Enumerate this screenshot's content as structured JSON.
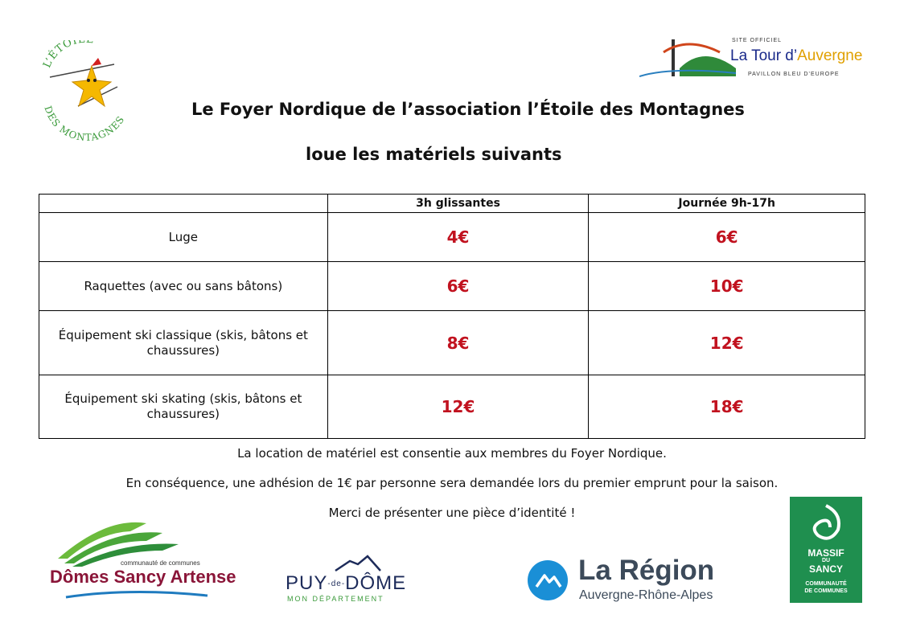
{
  "header": {
    "title_line1": "Le Foyer Nordique de l’association l’Étoile des Montagnes",
    "title_line2": "loue les matériels suivants"
  },
  "logos": {
    "etoile": {
      "arc_top": "L’ÉTOILE",
      "arc_bottom": "DES MONTAGNES"
    },
    "tour": {
      "small_top": "SITE OFFICIEL",
      "name_a": "La Tour d’",
      "name_b": "Auvergne",
      "small_bottom": "PAVILLON BLEU D’EUROPE"
    },
    "domes": {
      "small": "communauté de communes",
      "name": "Dômes Sancy Artense"
    },
    "puy": {
      "name_a": "PUY",
      "name_de": "-de-",
      "name_b": "DÔME",
      "sub": "MON DÉPARTEMENT"
    },
    "region": {
      "name": "La Région",
      "sub": "Auvergne-Rhône-Alpes"
    },
    "sancy": {
      "line1": "MASSIF",
      "line2": "DU",
      "line3": "SANCY",
      "line4": "COMMUNAUTÉ",
      "line5": "DE COMMUNES"
    }
  },
  "table": {
    "headers": [
      "",
      "3h glissantes",
      "Journée 9h-17h"
    ],
    "rows": [
      {
        "item": "Luge",
        "price_3h": "4€",
        "price_day": "6€"
      },
      {
        "item": "Raquettes (avec ou sans bâtons)",
        "price_3h": "6€",
        "price_day": "10€"
      },
      {
        "item": "Équipement ski classique (skis, bâtons et chaussures)",
        "price_3h": "8€",
        "price_day": "12€"
      },
      {
        "item": "Équipement ski skating (skis, bâtons et chaussures)",
        "price_3h": "12€",
        "price_day": "18€"
      }
    ]
  },
  "notes": [
    "La location de matériel est consentie aux membres du Foyer Nordique.",
    "En conséquence, une adhésion de 1€ par personne sera demandée lors du premier emprunt pour la saison.",
    "Merci de présenter une pièce d’identité !"
  ],
  "colors": {
    "price": "#c1121f",
    "green": "#2e9a4a",
    "region_blue": "#1a8fd6",
    "sancy_green": "#1f8f4f"
  }
}
